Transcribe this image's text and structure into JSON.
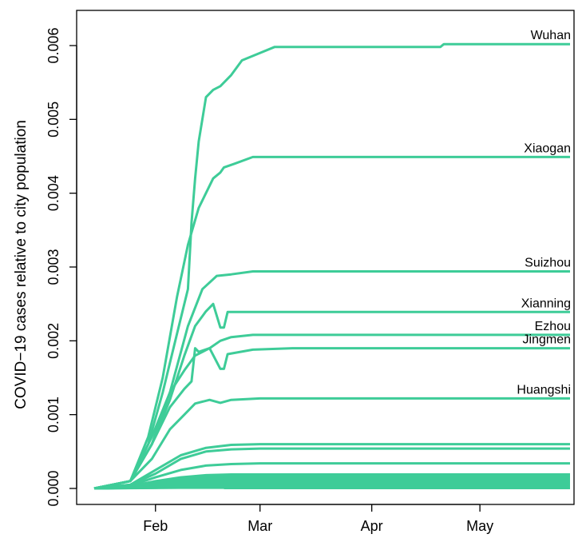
{
  "chart_data": {
    "type": "line",
    "title": "",
    "xlabel": "",
    "ylabel": "COVID−19 cases relative to city population",
    "color": "#3ECC98",
    "grid": false,
    "x_range": [
      "2020-01-15",
      "2020-05-26"
    ],
    "ylim": [
      0,
      0.0062
    ],
    "x_ticks": [
      {
        "date": "2020-02-01",
        "label": "Feb"
      },
      {
        "date": "2020-03-01",
        "label": "Mar"
      },
      {
        "date": "2020-04-01",
        "label": "Apr"
      },
      {
        "date": "2020-05-01",
        "label": "May"
      }
    ],
    "y_ticks": [
      "0.000",
      "0.001",
      "0.002",
      "0.003",
      "0.004",
      "0.005",
      "0.006"
    ],
    "labeled_series": [
      {
        "name": "Wuhan",
        "points": [
          [
            "2020-01-15",
            0
          ],
          [
            "2020-01-25",
            0.0001
          ],
          [
            "2020-01-30",
            0.0006
          ],
          [
            "2020-02-03",
            0.0013
          ],
          [
            "2020-02-07",
            0.0021
          ],
          [
            "2020-02-10",
            0.0027
          ],
          [
            "2020-02-11",
            0.0036
          ],
          [
            "2020-02-12",
            0.0042
          ],
          [
            "2020-02-13",
            0.0047
          ],
          [
            "2020-02-15",
            0.0053
          ],
          [
            "2020-02-17",
            0.0054
          ],
          [
            "2020-02-19",
            0.00545
          ],
          [
            "2020-02-22",
            0.0056
          ],
          [
            "2020-02-25",
            0.0058
          ],
          [
            "2020-03-01",
            0.0059
          ],
          [
            "2020-03-05",
            0.00598
          ],
          [
            "2020-04-20",
            0.00598
          ],
          [
            "2020-04-21",
            0.00602
          ],
          [
            "2020-05-26",
            0.00602
          ]
        ]
      },
      {
        "name": "Xiaogan",
        "points": [
          [
            "2020-01-15",
            0
          ],
          [
            "2020-01-25",
            0.0001
          ],
          [
            "2020-01-30",
            0.0007
          ],
          [
            "2020-02-03",
            0.0015
          ],
          [
            "2020-02-07",
            0.0026
          ],
          [
            "2020-02-10",
            0.0033
          ],
          [
            "2020-02-13",
            0.0038
          ],
          [
            "2020-02-17",
            0.0042
          ],
          [
            "2020-02-19",
            0.00428
          ],
          [
            "2020-02-20",
            0.00435
          ],
          [
            "2020-02-23",
            0.0044
          ],
          [
            "2020-02-28",
            0.00449
          ],
          [
            "2020-05-26",
            0.00449
          ]
        ]
      },
      {
        "name": "Suizhou",
        "points": [
          [
            "2020-01-15",
            0
          ],
          [
            "2020-01-25",
            0.0001
          ],
          [
            "2020-01-31",
            0.0006
          ],
          [
            "2020-02-05",
            0.0013
          ],
          [
            "2020-02-10",
            0.0022
          ],
          [
            "2020-02-14",
            0.0027
          ],
          [
            "2020-02-18",
            0.00288
          ],
          [
            "2020-02-22",
            0.0029
          ],
          [
            "2020-02-28",
            0.00294
          ],
          [
            "2020-05-26",
            0.00294
          ]
        ]
      },
      {
        "name": "Xianning",
        "points": [
          [
            "2020-01-15",
            0
          ],
          [
            "2020-01-25",
            0.0001
          ],
          [
            "2020-01-31",
            0.0006
          ],
          [
            "2020-02-05",
            0.0012
          ],
          [
            "2020-02-09",
            0.0018
          ],
          [
            "2020-02-12",
            0.0022
          ],
          [
            "2020-02-15",
            0.0024
          ],
          [
            "2020-02-17",
            0.0025
          ],
          [
            "2020-02-19",
            0.00218
          ],
          [
            "2020-02-20",
            0.00218
          ],
          [
            "2020-02-21",
            0.00239
          ],
          [
            "2020-05-26",
            0.00239
          ]
        ]
      },
      {
        "name": "Ezhou",
        "points": [
          [
            "2020-01-15",
            0
          ],
          [
            "2020-01-25",
            0.0001
          ],
          [
            "2020-01-31",
            0.0007
          ],
          [
            "2020-02-05",
            0.0013
          ],
          [
            "2020-02-09",
            0.0016
          ],
          [
            "2020-02-12",
            0.0018
          ],
          [
            "2020-02-16",
            0.0019
          ],
          [
            "2020-02-19",
            0.002
          ],
          [
            "2020-02-22",
            0.00205
          ],
          [
            "2020-02-28",
            0.00208
          ],
          [
            "2020-05-26",
            0.00208
          ]
        ]
      },
      {
        "name": "Jingmen",
        "points": [
          [
            "2020-01-15",
            0
          ],
          [
            "2020-01-25",
            0.0001
          ],
          [
            "2020-01-31",
            0.0006
          ],
          [
            "2020-02-05",
            0.0011
          ],
          [
            "2020-02-09",
            0.00135
          ],
          [
            "2020-02-11",
            0.00145
          ],
          [
            "2020-02-12",
            0.0019
          ],
          [
            "2020-02-13",
            0.00185
          ],
          [
            "2020-02-16",
            0.0019
          ],
          [
            "2020-02-19",
            0.00162
          ],
          [
            "2020-02-20",
            0.00162
          ],
          [
            "2020-02-21",
            0.00182
          ],
          [
            "2020-02-28",
            0.00188
          ],
          [
            "2020-03-10",
            0.0019
          ],
          [
            "2020-05-26",
            0.0019
          ]
        ]
      },
      {
        "name": "Huangshi",
        "points": [
          [
            "2020-01-15",
            0
          ],
          [
            "2020-01-25",
            0.0001
          ],
          [
            "2020-01-31",
            0.0004
          ],
          [
            "2020-02-05",
            0.0008
          ],
          [
            "2020-02-09",
            0.001
          ],
          [
            "2020-02-12",
            0.00115
          ],
          [
            "2020-02-16",
            0.0012
          ],
          [
            "2020-02-19",
            0.00116
          ],
          [
            "2020-02-22",
            0.0012
          ],
          [
            "2020-03-01",
            0.00122
          ],
          [
            "2020-05-26",
            0.00122
          ]
        ]
      }
    ],
    "other_series": [
      {
        "points": [
          [
            "2020-01-15",
            0
          ],
          [
            "2020-01-25",
            5e-05
          ],
          [
            "2020-02-01",
            0.00025
          ],
          [
            "2020-02-08",
            0.00045
          ],
          [
            "2020-02-15",
            0.00055
          ],
          [
            "2020-02-22",
            0.00059
          ],
          [
            "2020-03-01",
            0.0006
          ],
          [
            "2020-05-26",
            0.0006
          ]
        ]
      },
      {
        "points": [
          [
            "2020-01-15",
            0
          ],
          [
            "2020-01-25",
            5e-05
          ],
          [
            "2020-02-01",
            0.0002
          ],
          [
            "2020-02-08",
            0.0004
          ],
          [
            "2020-02-15",
            0.0005
          ],
          [
            "2020-02-22",
            0.00053
          ],
          [
            "2020-03-01",
            0.00054
          ],
          [
            "2020-05-26",
            0.00054
          ]
        ]
      },
      {
        "points": [
          [
            "2020-01-15",
            0
          ],
          [
            "2020-01-25",
            4e-05
          ],
          [
            "2020-02-01",
            0.00015
          ],
          [
            "2020-02-08",
            0.00025
          ],
          [
            "2020-02-15",
            0.00031
          ],
          [
            "2020-02-22",
            0.00033
          ],
          [
            "2020-03-01",
            0.00034
          ],
          [
            "2020-05-26",
            0.00034
          ]
        ]
      },
      {
        "points": [
          [
            "2020-01-15",
            0
          ],
          [
            "2020-01-25",
            3e-05
          ],
          [
            "2020-02-01",
            0.0001
          ],
          [
            "2020-02-08",
            0.00015
          ],
          [
            "2020-02-15",
            0.00018
          ],
          [
            "2020-02-22",
            0.00019
          ],
          [
            "2020-05-26",
            0.00019
          ]
        ]
      },
      {
        "points": [
          [
            "2020-01-15",
            0
          ],
          [
            "2020-01-25",
            3e-05
          ],
          [
            "2020-02-01",
            9e-05
          ],
          [
            "2020-02-08",
            0.00014
          ],
          [
            "2020-02-15",
            0.00016
          ],
          [
            "2020-02-22",
            0.00017
          ],
          [
            "2020-05-26",
            0.00017
          ]
        ]
      },
      {
        "points": [
          [
            "2020-01-15",
            0
          ],
          [
            "2020-01-25",
            2e-05
          ],
          [
            "2020-02-01",
            8e-05
          ],
          [
            "2020-02-08",
            0.00012
          ],
          [
            "2020-02-15",
            0.00014
          ],
          [
            "2020-02-22",
            0.00015
          ],
          [
            "2020-05-26",
            0.00015
          ]
        ]
      },
      {
        "points": [
          [
            "2020-01-15",
            0
          ],
          [
            "2020-01-25",
            2e-05
          ],
          [
            "2020-02-01",
            7e-05
          ],
          [
            "2020-02-08",
            0.0001
          ],
          [
            "2020-02-15",
            0.00012
          ],
          [
            "2020-02-22",
            0.00013
          ],
          [
            "2020-05-26",
            0.00013
          ]
        ]
      },
      {
        "points": [
          [
            "2020-01-15",
            0
          ],
          [
            "2020-01-25",
            2e-05
          ],
          [
            "2020-02-01",
            6e-05
          ],
          [
            "2020-02-08",
            9e-05
          ],
          [
            "2020-02-15",
            0.0001
          ],
          [
            "2020-02-22",
            0.00011
          ],
          [
            "2020-05-26",
            0.00011
          ]
        ]
      },
      {
        "points": [
          [
            "2020-01-15",
            0
          ],
          [
            "2020-01-25",
            2e-05
          ],
          [
            "2020-02-01",
            5e-05
          ],
          [
            "2020-02-08",
            7e-05
          ],
          [
            "2020-02-15",
            8e-05
          ],
          [
            "2020-02-22",
            9e-05
          ],
          [
            "2020-05-26",
            9e-05
          ]
        ]
      },
      {
        "points": [
          [
            "2020-01-15",
            0
          ],
          [
            "2020-01-25",
            1e-05
          ],
          [
            "2020-02-01",
            4e-05
          ],
          [
            "2020-02-08",
            6e-05
          ],
          [
            "2020-02-15",
            7e-05
          ],
          [
            "2020-05-26",
            7e-05
          ]
        ]
      },
      {
        "points": [
          [
            "2020-01-15",
            0
          ],
          [
            "2020-01-25",
            1e-05
          ],
          [
            "2020-02-01",
            3e-05
          ],
          [
            "2020-02-08",
            4e-05
          ],
          [
            "2020-02-15",
            5e-05
          ],
          [
            "2020-05-26",
            5e-05
          ]
        ]
      },
      {
        "points": [
          [
            "2020-01-15",
            0
          ],
          [
            "2020-01-25",
            1e-05
          ],
          [
            "2020-02-01",
            2e-05
          ],
          [
            "2020-02-08",
            3e-05
          ],
          [
            "2020-05-26",
            3e-05
          ]
        ]
      },
      {
        "points": [
          [
            "2020-01-15",
            0
          ],
          [
            "2020-02-01",
            1e-05
          ],
          [
            "2020-02-08",
            2e-05
          ],
          [
            "2020-05-26",
            2e-05
          ]
        ]
      },
      {
        "points": [
          [
            "2020-01-15",
            0
          ],
          [
            "2020-02-08",
            1e-05
          ],
          [
            "2020-05-26",
            1e-05
          ]
        ]
      }
    ]
  }
}
